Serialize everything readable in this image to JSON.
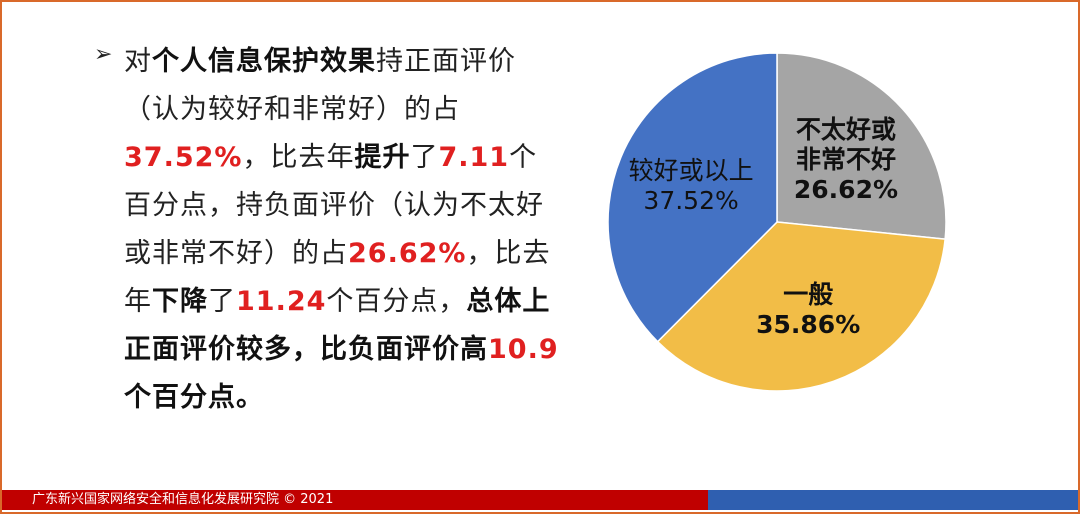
{
  "paragraph": [
    {
      "text": "对",
      "bold": false,
      "red": false
    },
    {
      "text": "个人信息保护效果",
      "bold": true,
      "red": false
    },
    {
      "text": "持正面评价（认为较好和非常好）的占",
      "bold": false,
      "red": false
    },
    {
      "text": "37.52%",
      "bold": true,
      "red": true
    },
    {
      "text": "，比去年",
      "bold": false,
      "red": false
    },
    {
      "text": "提升",
      "bold": true,
      "red": false
    },
    {
      "text": "了",
      "bold": false,
      "red": false
    },
    {
      "text": "7.11",
      "bold": true,
      "red": true
    },
    {
      "text": "个百分点，持负面评价（认为不太好或非常不好）的占",
      "bold": false,
      "red": false
    },
    {
      "text": "26.62%",
      "bold": true,
      "red": true
    },
    {
      "text": "，比去年",
      "bold": false,
      "red": false
    },
    {
      "text": "下降",
      "bold": true,
      "red": false
    },
    {
      "text": "了",
      "bold": false,
      "red": false
    },
    {
      "text": "11.24",
      "bold": true,
      "red": true
    },
    {
      "text": "个百分点，",
      "bold": false,
      "red": false
    },
    {
      "text": "总体上正面评价较多，比负面评价高",
      "bold": true,
      "red": false
    },
    {
      "text": "10.9",
      "bold": true,
      "red": true
    },
    {
      "text": "个百分点。",
      "bold": true,
      "red": false
    }
  ],
  "chart_data": {
    "type": "pie",
    "categories": [
      "不太好或非常不好",
      "一般",
      "较好或以上"
    ],
    "values": [
      26.62,
      35.86,
      37.52
    ],
    "value_labels": [
      "26.62%",
      "35.86%",
      "37.52%"
    ],
    "colors": [
      "#a5a5a5",
      "#f2bd47",
      "#4472c4"
    ]
  },
  "footer": "广东新兴国家网络安全和信息化发展研究院 © 2021"
}
